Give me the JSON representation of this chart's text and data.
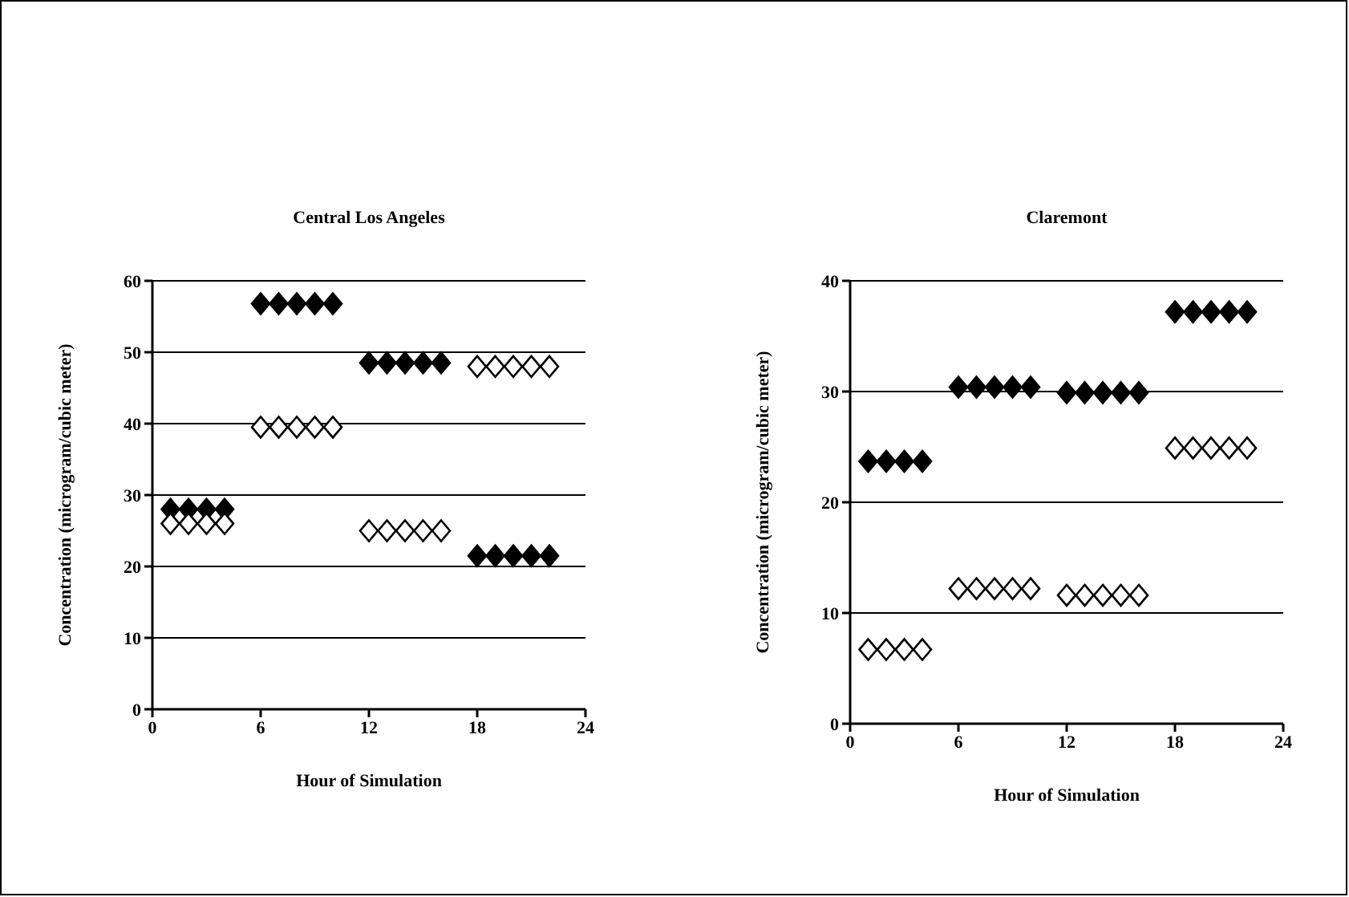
{
  "chart_data": [
    {
      "type": "scatter",
      "title": "Central Los Angeles",
      "xlabel": "Hour of Simulation",
      "ylabel": "Concentration (microgram/cubic meter)",
      "xlim": [
        0,
        24
      ],
      "xticks": [
        0,
        6,
        12,
        18,
        24
      ],
      "ylim": [
        0,
        60
      ],
      "yticks": [
        0,
        10,
        20,
        30,
        40,
        50,
        60
      ],
      "grid": "y",
      "marker": "diamond",
      "legend": false,
      "series": [
        {
          "color": "#000000",
          "x": [
            1,
            2,
            3,
            4,
            6,
            7,
            8,
            9,
            10,
            12,
            13,
            14,
            15,
            16,
            18,
            19,
            20,
            21,
            22
          ],
          "values": [
            28,
            28,
            28,
            28,
            56.8,
            56.8,
            56.8,
            56.8,
            56.8,
            48.5,
            48.5,
            48.5,
            48.5,
            48.5,
            21.5,
            21.5,
            21.5,
            21.5,
            21.5
          ]
        },
        {
          "color": "#ffffff",
          "x": [
            1,
            2,
            3,
            4,
            6,
            7,
            8,
            9,
            10,
            12,
            13,
            14,
            15,
            16,
            18,
            19,
            20,
            21,
            22
          ],
          "values": [
            26,
            26,
            26,
            26,
            39.5,
            39.5,
            39.5,
            39.5,
            39.5,
            25,
            25,
            25,
            25,
            25,
            48,
            48,
            48,
            48,
            48
          ]
        }
      ]
    },
    {
      "type": "scatter",
      "title": "Claremont",
      "xlabel": "Hour of Simulation",
      "ylabel": "Concentration (microgram/cubic meter)",
      "xlim": [
        0,
        24
      ],
      "xticks": [
        0,
        6,
        12,
        18,
        24
      ],
      "ylim": [
        0,
        40
      ],
      "yticks": [
        0,
        10,
        20,
        30,
        40
      ],
      "grid": "y",
      "marker": "diamond",
      "legend": false,
      "series": [
        {
          "color": "#000000",
          "x": [
            1,
            2,
            3,
            4,
            6,
            7,
            8,
            9,
            10,
            12,
            13,
            14,
            15,
            16,
            18,
            19,
            20,
            21,
            22
          ],
          "values": [
            23.7,
            23.7,
            23.7,
            23.7,
            30.4,
            30.4,
            30.4,
            30.4,
            30.4,
            29.9,
            29.9,
            29.9,
            29.9,
            29.9,
            37.2,
            37.2,
            37.2,
            37.2,
            37.2
          ]
        },
        {
          "color": "#ffffff",
          "x": [
            1,
            2,
            3,
            4,
            6,
            7,
            8,
            9,
            10,
            12,
            13,
            14,
            15,
            16,
            18,
            19,
            20,
            21,
            22
          ],
          "values": [
            6.7,
            6.7,
            6.7,
            6.7,
            12.2,
            12.2,
            12.2,
            12.2,
            12.2,
            11.6,
            11.6,
            11.6,
            11.6,
            11.6,
            24.9,
            24.9,
            24.9,
            24.9,
            24.9
          ]
        }
      ]
    }
  ]
}
